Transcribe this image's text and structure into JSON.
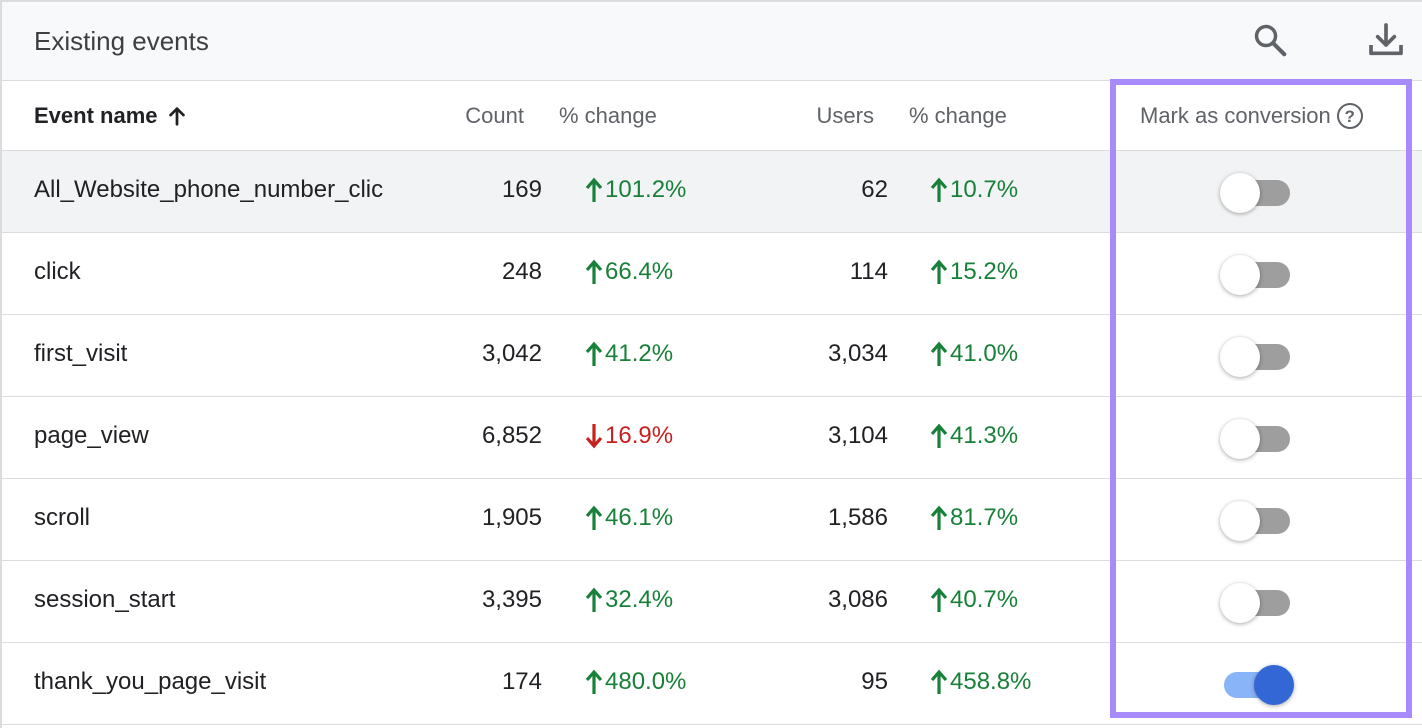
{
  "header": {
    "title": "Existing events",
    "search_icon": "search-icon",
    "download_icon": "download-icon"
  },
  "columns": {
    "event_name": "Event name",
    "count": "Count",
    "count_change": "% change",
    "users": "Users",
    "users_change": "% change",
    "mark_as_conversion": "Mark as conversion",
    "help": "?"
  },
  "colors": {
    "up": "#188038",
    "down": "#c5221f",
    "highlight": "#a78bfa",
    "toggle_on": "#3367d6"
  },
  "rows": [
    {
      "name": "All_Website_phone_number_clic",
      "count": "169",
      "count_change": "101.2%",
      "count_dir": "up",
      "users": "62",
      "users_change": "10.7%",
      "users_dir": "up",
      "conversion": false
    },
    {
      "name": "click",
      "count": "248",
      "count_change": "66.4%",
      "count_dir": "up",
      "users": "114",
      "users_change": "15.2%",
      "users_dir": "up",
      "conversion": false
    },
    {
      "name": "first_visit",
      "count": "3,042",
      "count_change": "41.2%",
      "count_dir": "up",
      "users": "3,034",
      "users_change": "41.0%",
      "users_dir": "up",
      "conversion": false
    },
    {
      "name": "page_view",
      "count": "6,852",
      "count_change": "16.9%",
      "count_dir": "down",
      "users": "3,104",
      "users_change": "41.3%",
      "users_dir": "up",
      "conversion": false
    },
    {
      "name": "scroll",
      "count": "1,905",
      "count_change": "46.1%",
      "count_dir": "up",
      "users": "1,586",
      "users_change": "81.7%",
      "users_dir": "up",
      "conversion": false
    },
    {
      "name": "session_start",
      "count": "3,395",
      "count_change": "32.4%",
      "count_dir": "up",
      "users": "3,086",
      "users_change": "40.7%",
      "users_dir": "up",
      "conversion": false
    },
    {
      "name": "thank_you_page_visit",
      "count": "174",
      "count_change": "480.0%",
      "count_dir": "up",
      "users": "95",
      "users_change": "458.8%",
      "users_dir": "up",
      "conversion": true
    }
  ]
}
